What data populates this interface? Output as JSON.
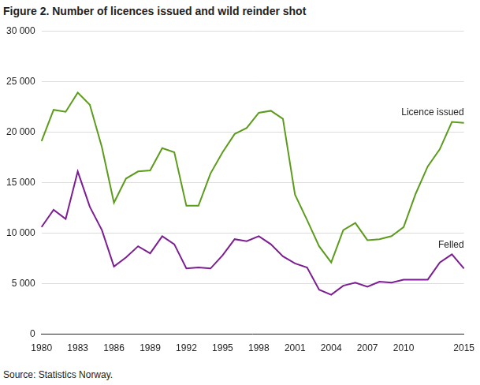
{
  "chart_data": {
    "type": "line",
    "title": "Figure 2. Number of licences issued and wild reinder shot",
    "source": "Source: Statistics Norway.",
    "categories": [
      "1980",
      null,
      null,
      "1983",
      null,
      null,
      "1986",
      null,
      null,
      "1989",
      null,
      null,
      "1992",
      null,
      null,
      "1995",
      null,
      null,
      "1998",
      null,
      null,
      "2001",
      null,
      null,
      "2004",
      null,
      null,
      "2007",
      null,
      null,
      "2010",
      null,
      null,
      null,
      null,
      "2015"
    ],
    "series": [
      {
        "name": "Licence issued",
        "color": "#5c9c1c",
        "values": [
          19100,
          22200,
          22000,
          23900,
          22700,
          18500,
          13000,
          15400,
          16100,
          16200,
          18400,
          18000,
          12700,
          12700,
          15900,
          18000,
          19800,
          20400,
          21900,
          22100,
          21300,
          13800,
          11300,
          8700,
          7100,
          10300,
          11000,
          9300,
          9400,
          9700,
          10600,
          13900,
          16600,
          18300,
          21000,
          20900
        ]
      },
      {
        "name": "Felled",
        "color": "#7d1d93",
        "values": [
          10600,
          12300,
          11400,
          16100,
          12600,
          10300,
          6700,
          7600,
          8700,
          8000,
          9700,
          8900,
          6500,
          6600,
          6500,
          7800,
          9400,
          9200,
          9700,
          8900,
          7700,
          7000,
          6600,
          4400,
          3900,
          4800,
          5100,
          4700,
          5200,
          5100,
          5400,
          5400,
          5400,
          7100,
          7900,
          6500
        ]
      }
    ],
    "ylim": [
      0,
      30000
    ],
    "yticks": [
      0,
      {
        "value": 5000,
        "label": "5 000"
      },
      {
        "value": 10000,
        "label": "10 000"
      },
      {
        "value": 15000,
        "label": "15 000"
      },
      {
        "value": 20000,
        "label": "20 000"
      },
      {
        "value": 25000,
        "label": "25 000"
      },
      {
        "value": 30000,
        "label": "30 000"
      }
    ],
    "grid": true
  }
}
